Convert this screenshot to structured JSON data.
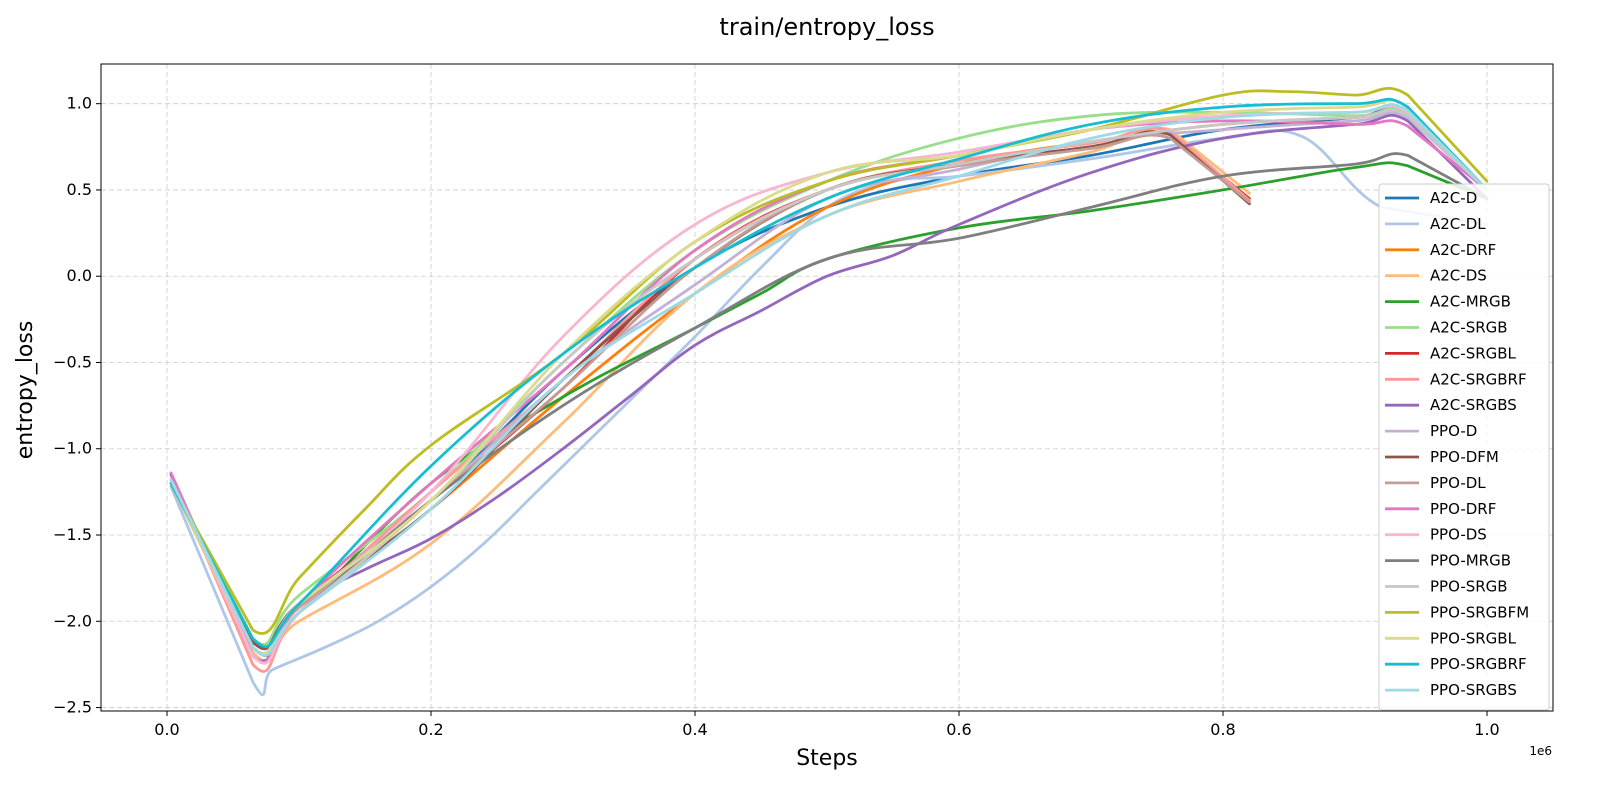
{
  "chart_data": {
    "type": "line",
    "title": "train/entropy_loss",
    "xlabel": "Steps",
    "ylabel": "entropy_loss",
    "x_scale_label": "1e6",
    "xlim": [
      -0.05,
      1.05
    ],
    "ylim": [
      -2.52,
      1.23
    ],
    "xticks": [
      0.0,
      0.2,
      0.4,
      0.6,
      0.8,
      1.0
    ],
    "xtick_labels": [
      "0.0",
      "0.2",
      "0.4",
      "0.6",
      "0.8",
      "1.0"
    ],
    "yticks": [
      -2.5,
      -2.0,
      -1.5,
      -1.0,
      -0.5,
      0.0,
      0.5,
      1.0
    ],
    "ytick_labels": [
      "−2.5",
      "−2.0",
      "−1.5",
      "−1.0",
      "−0.5",
      "0.0",
      "0.5",
      "1.0"
    ],
    "grid": true,
    "legend_position": "right",
    "series": [
      {
        "name": "A2C-D",
        "color": "#1f77b4",
        "x": [
          0.003,
          0.065,
          0.1,
          0.2,
          0.3,
          0.4,
          0.5,
          0.6,
          0.7,
          0.8,
          0.9,
          0.94,
          1.0
        ],
        "y": [
          -1.2,
          -2.12,
          -1.9,
          -1.3,
          -0.55,
          0.05,
          0.4,
          0.58,
          0.7,
          0.85,
          0.92,
          0.96,
          0.5
        ]
      },
      {
        "name": "A2C-DL",
        "color": "#aec7e8",
        "x": [
          0.003,
          0.065,
          0.08,
          0.12,
          0.16,
          0.2,
          0.24,
          0.28,
          0.32,
          0.36,
          0.4,
          0.45,
          0.5,
          0.55,
          0.6,
          0.7,
          0.8,
          0.86,
          0.92,
          1.0
        ],
        "y": [
          -1.22,
          -2.35,
          -2.28,
          -2.15,
          -2.0,
          -1.8,
          -1.55,
          -1.25,
          -0.95,
          -0.65,
          -0.35,
          0.05,
          0.4,
          0.55,
          0.58,
          0.68,
          0.8,
          0.81,
          0.4,
          0.3
        ]
      },
      {
        "name": "A2C-DRF",
        "color": "#ff7f0e",
        "x": [
          0.003,
          0.065,
          0.1,
          0.2,
          0.3,
          0.4,
          0.5,
          0.6,
          0.7,
          0.8,
          0.9,
          0.94,
          1.0
        ],
        "y": [
          -1.18,
          -2.15,
          -1.95,
          -1.35,
          -0.7,
          -0.1,
          0.4,
          0.65,
          0.78,
          0.88,
          0.92,
          0.93,
          0.5
        ]
      },
      {
        "name": "A2C-DS",
        "color": "#ffbb78",
        "x": [
          0.003,
          0.065,
          0.1,
          0.2,
          0.3,
          0.4,
          0.5,
          0.6,
          0.7,
          0.76,
          0.82
        ],
        "y": [
          -1.2,
          -2.18,
          -2.0,
          -1.55,
          -0.85,
          -0.1,
          0.35,
          0.55,
          0.72,
          0.85,
          0.48
        ]
      },
      {
        "name": "A2C-MRGB",
        "color": "#2ca02c",
        "x": [
          0.003,
          0.065,
          0.1,
          0.2,
          0.3,
          0.4,
          0.45,
          0.5,
          0.6,
          0.7,
          0.8,
          0.9,
          0.94,
          1.0
        ],
        "y": [
          -1.2,
          -2.15,
          -1.95,
          -1.2,
          -0.7,
          -0.3,
          -0.1,
          0.1,
          0.28,
          0.38,
          0.5,
          0.63,
          0.64,
          0.45
        ]
      },
      {
        "name": "A2C-SRGB",
        "color": "#98df8a",
        "x": [
          0.003,
          0.065,
          0.1,
          0.2,
          0.3,
          0.4,
          0.5,
          0.6,
          0.7,
          0.8,
          0.9,
          0.94,
          1.0
        ],
        "y": [
          -1.18,
          -2.1,
          -1.85,
          -1.25,
          -0.5,
          0.15,
          0.55,
          0.8,
          0.93,
          0.95,
          0.93,
          0.94,
          0.5
        ]
      },
      {
        "name": "A2C-SRGBL",
        "color": "#d62728",
        "x": [
          0.003,
          0.065,
          0.1,
          0.2,
          0.3,
          0.4,
          0.5,
          0.6,
          0.7,
          0.76,
          0.82
        ],
        "y": [
          -1.15,
          -2.2,
          -1.9,
          -1.3,
          -0.65,
          0.1,
          0.5,
          0.65,
          0.75,
          0.82,
          0.45
        ]
      },
      {
        "name": "A2C-SRGBRF",
        "color": "#ff9896",
        "x": [
          0.003,
          0.065,
          0.1,
          0.2,
          0.3,
          0.4,
          0.5,
          0.6,
          0.7,
          0.76,
          0.82
        ],
        "y": [
          -1.15,
          -2.25,
          -1.95,
          -1.25,
          -0.6,
          0.1,
          0.5,
          0.67,
          0.77,
          0.84,
          0.44
        ]
      },
      {
        "name": "A2C-SRGBS",
        "color": "#9467bd",
        "x": [
          0.003,
          0.065,
          0.1,
          0.15,
          0.2,
          0.25,
          0.3,
          0.35,
          0.4,
          0.45,
          0.5,
          0.55,
          0.6,
          0.7,
          0.8,
          0.9,
          0.94,
          1.0
        ],
        "y": [
          -1.15,
          -2.2,
          -1.9,
          -1.7,
          -1.52,
          -1.28,
          -1.0,
          -0.7,
          -0.4,
          -0.2,
          0.0,
          0.12,
          0.3,
          0.6,
          0.8,
          0.88,
          0.9,
          0.45
        ]
      },
      {
        "name": "PPO-D",
        "color": "#c5b0d5",
        "x": [
          0.003,
          0.065,
          0.1,
          0.2,
          0.3,
          0.4,
          0.5,
          0.6,
          0.7,
          0.8,
          0.9,
          0.94,
          1.0
        ],
        "y": [
          -1.2,
          -2.15,
          -1.9,
          -1.3,
          -0.6,
          -0.05,
          0.45,
          0.62,
          0.78,
          0.85,
          0.9,
          0.92,
          0.5
        ]
      },
      {
        "name": "PPO-DFM",
        "color": "#8c564b",
        "x": [
          0.003,
          0.065,
          0.1,
          0.2,
          0.3,
          0.4,
          0.5,
          0.6,
          0.7,
          0.76,
          0.82
        ],
        "y": [
          -1.2,
          -2.12,
          -1.9,
          -1.35,
          -0.6,
          0.05,
          0.5,
          0.65,
          0.75,
          0.82,
          0.42
        ]
      },
      {
        "name": "PPO-DL",
        "color": "#c49c94",
        "x": [
          0.003,
          0.065,
          0.1,
          0.2,
          0.3,
          0.4,
          0.5,
          0.6,
          0.7,
          0.76,
          0.82
        ],
        "y": [
          -1.2,
          -2.15,
          -1.92,
          -1.3,
          -0.65,
          0.05,
          0.5,
          0.64,
          0.74,
          0.8,
          0.43
        ]
      },
      {
        "name": "PPO-DRF",
        "color": "#e377c2",
        "x": [
          0.003,
          0.065,
          0.1,
          0.2,
          0.3,
          0.4,
          0.5,
          0.6,
          0.7,
          0.8,
          0.9,
          0.94,
          1.0
        ],
        "y": [
          -1.14,
          -2.2,
          -1.9,
          -1.2,
          -0.55,
          0.15,
          0.55,
          0.7,
          0.85,
          0.9,
          0.88,
          0.87,
          0.5
        ]
      },
      {
        "name": "PPO-DS",
        "color": "#f7b6d2",
        "x": [
          0.003,
          0.065,
          0.1,
          0.2,
          0.3,
          0.4,
          0.5,
          0.6,
          0.7,
          0.8,
          0.9,
          0.94,
          1.0
        ],
        "y": [
          -1.18,
          -2.2,
          -1.95,
          -1.25,
          -0.35,
          0.3,
          0.6,
          0.72,
          0.85,
          0.93,
          0.95,
          0.95,
          0.5
        ]
      },
      {
        "name": "PPO-MRGB",
        "color": "#7f7f7f",
        "x": [
          0.003,
          0.065,
          0.1,
          0.2,
          0.3,
          0.4,
          0.5,
          0.6,
          0.7,
          0.8,
          0.9,
          0.94,
          1.0
        ],
        "y": [
          -1.2,
          -2.15,
          -1.95,
          -1.3,
          -0.75,
          -0.3,
          0.1,
          0.22,
          0.4,
          0.58,
          0.65,
          0.7,
          0.45
        ]
      },
      {
        "name": "PPO-SRGB",
        "color": "#c7c7c7",
        "x": [
          0.003,
          0.065,
          0.1,
          0.2,
          0.3,
          0.4,
          0.5,
          0.6,
          0.7,
          0.8,
          0.9,
          0.94,
          1.0
        ],
        "y": [
          -1.2,
          -2.15,
          -1.95,
          -1.3,
          -0.5,
          0.1,
          0.5,
          0.65,
          0.78,
          0.88,
          0.92,
          0.93,
          0.5
        ]
      },
      {
        "name": "PPO-SRGBFM",
        "color": "#bcbd22",
        "x": [
          0.003,
          0.065,
          0.1,
          0.15,
          0.2,
          0.3,
          0.4,
          0.5,
          0.6,
          0.7,
          0.8,
          0.85,
          0.9,
          0.94,
          1.0
        ],
        "y": [
          -1.2,
          -2.05,
          -1.75,
          -1.35,
          -0.98,
          -0.45,
          0.2,
          0.55,
          0.7,
          0.85,
          1.05,
          1.07,
          1.05,
          1.05,
          0.55
        ]
      },
      {
        "name": "PPO-SRGBL",
        "color": "#dbdb8d",
        "x": [
          0.003,
          0.065,
          0.1,
          0.2,
          0.3,
          0.4,
          0.5,
          0.6,
          0.7,
          0.8,
          0.9,
          0.94,
          1.0
        ],
        "y": [
          -1.2,
          -2.15,
          -1.9,
          -1.3,
          -0.45,
          0.2,
          0.6,
          0.7,
          0.85,
          0.95,
          0.98,
          0.98,
          0.5
        ]
      },
      {
        "name": "PPO-SRGBRF",
        "color": "#17becf",
        "x": [
          0.003,
          0.065,
          0.1,
          0.2,
          0.3,
          0.4,
          0.5,
          0.6,
          0.7,
          0.8,
          0.9,
          0.94,
          1.0
        ],
        "y": [
          -1.2,
          -2.1,
          -1.9,
          -1.1,
          -0.45,
          0.05,
          0.45,
          0.68,
          0.88,
          0.98,
          1.0,
          0.98,
          0.5
        ]
      },
      {
        "name": "PPO-SRGBS",
        "color": "#9edae5",
        "x": [
          0.003,
          0.065,
          0.1,
          0.2,
          0.3,
          0.4,
          0.5,
          0.6,
          0.7,
          0.8,
          0.9,
          0.94,
          1.0
        ],
        "y": [
          -1.18,
          -2.15,
          -1.95,
          -1.35,
          -0.6,
          -0.1,
          0.35,
          0.58,
          0.8,
          0.92,
          0.95,
          0.96,
          0.5
        ]
      }
    ]
  }
}
